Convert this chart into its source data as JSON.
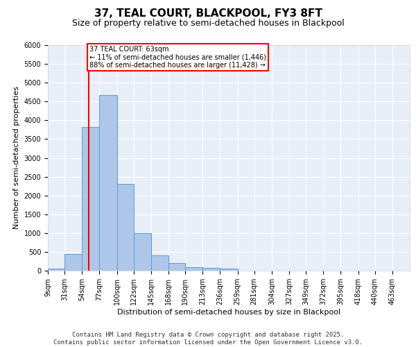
{
  "title": "37, TEAL COURT, BLACKPOOL, FY3 8FT",
  "subtitle": "Size of property relative to semi-detached houses in Blackpool",
  "xlabel": "Distribution of semi-detached houses by size in Blackpool",
  "ylabel": "Number of semi-detached properties",
  "property_label": "37 TEAL COURT: 63sqm",
  "annotation_line1": "← 11% of semi-detached houses are smaller (1,446)",
  "annotation_line2": "88% of semi-detached houses are larger (11,428) →",
  "bin_labels": [
    "9sqm",
    "31sqm",
    "54sqm",
    "77sqm",
    "100sqm",
    "122sqm",
    "145sqm",
    "168sqm",
    "190sqm",
    "213sqm",
    "236sqm",
    "259sqm",
    "281sqm",
    "304sqm",
    "327sqm",
    "349sqm",
    "372sqm",
    "395sqm",
    "418sqm",
    "440sqm",
    "463sqm"
  ],
  "bin_edges": [
    9,
    31,
    54,
    77,
    100,
    122,
    145,
    168,
    190,
    213,
    236,
    259,
    281,
    304,
    327,
    349,
    372,
    395,
    418,
    440,
    463
  ],
  "bar_values": [
    50,
    450,
    3820,
    4680,
    2300,
    1000,
    410,
    210,
    100,
    75,
    50,
    0,
    0,
    0,
    0,
    0,
    0,
    0,
    0,
    0,
    0
  ],
  "bar_color": "#aec6e8",
  "bar_edge_color": "#5b9bd5",
  "red_line_x": 63,
  "red_line_color": "#ff0000",
  "annotation_box_color": "#ff0000",
  "background_color": "#e8eef7",
  "grid_color": "#ffffff",
  "ylim": [
    0,
    6000
  ],
  "yticks": [
    0,
    500,
    1000,
    1500,
    2000,
    2500,
    3000,
    3500,
    4000,
    4500,
    5000,
    5500,
    6000
  ],
  "footer_line1": "Contains HM Land Registry data © Crown copyright and database right 2025.",
  "footer_line2": "Contains public sector information licensed under the Open Government Licence v3.0.",
  "title_fontsize": 11,
  "subtitle_fontsize": 9,
  "axis_label_fontsize": 8,
  "tick_fontsize": 7,
  "annotation_fontsize": 7,
  "footer_fontsize": 6.5
}
